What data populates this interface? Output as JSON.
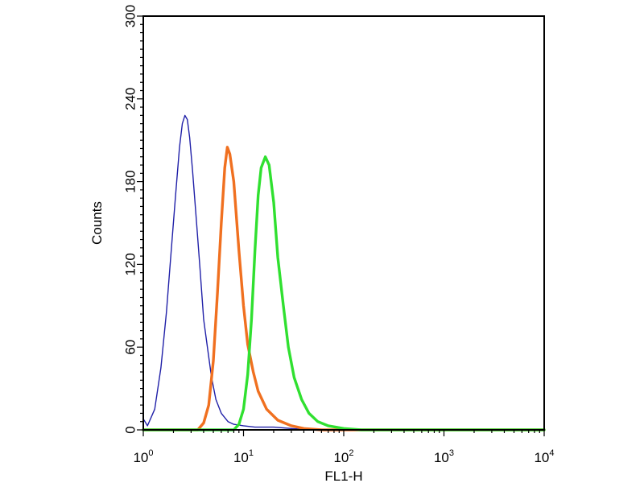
{
  "chart_data": {
    "type": "line",
    "title": "",
    "xlabel": "FL1-H",
    "ylabel": "Counts",
    "x_scale": "log",
    "xlim": [
      1,
      10000
    ],
    "ylim": [
      0,
      300
    ],
    "x_ticks": [
      {
        "base": "10",
        "exp": "0"
      },
      {
        "base": "10",
        "exp": "1"
      },
      {
        "base": "10",
        "exp": "2"
      },
      {
        "base": "10",
        "exp": "3"
      },
      {
        "base": "10",
        "exp": "4"
      }
    ],
    "y_ticks": [
      "0",
      "60",
      "120",
      "180",
      "240",
      "300"
    ],
    "y_tick_values": [
      0,
      60,
      120,
      180,
      240,
      300
    ],
    "grid": false,
    "legend": "none",
    "series": [
      {
        "color": "#2020a8",
        "points": [
          [
            1.0,
            8
          ],
          [
            1.1,
            3
          ],
          [
            1.3,
            15
          ],
          [
            1.5,
            45
          ],
          [
            1.7,
            85
          ],
          [
            1.9,
            130
          ],
          [
            2.1,
            170
          ],
          [
            2.3,
            205
          ],
          [
            2.45,
            222
          ],
          [
            2.6,
            228
          ],
          [
            2.75,
            225
          ],
          [
            2.9,
            212
          ],
          [
            3.1,
            188
          ],
          [
            3.4,
            150
          ],
          [
            3.7,
            115
          ],
          [
            4.0,
            80
          ],
          [
            4.4,
            58
          ],
          [
            4.8,
            38
          ],
          [
            5.3,
            22
          ],
          [
            6.0,
            12
          ],
          [
            7.0,
            6
          ],
          [
            8.0,
            4
          ],
          [
            10,
            3
          ],
          [
            13,
            2
          ],
          [
            20,
            2
          ],
          [
            30,
            1
          ],
          [
            50,
            0
          ],
          [
            10000,
            0
          ]
        ]
      },
      {
        "color": "#f07020",
        "points": [
          [
            1.0,
            0
          ],
          [
            3.5,
            0
          ],
          [
            4.0,
            5
          ],
          [
            4.5,
            18
          ],
          [
            5.0,
            50
          ],
          [
            5.5,
            100
          ],
          [
            6.0,
            150
          ],
          [
            6.5,
            190
          ],
          [
            6.9,
            205
          ],
          [
            7.3,
            200
          ],
          [
            8.0,
            180
          ],
          [
            9.0,
            130
          ],
          [
            10.0,
            90
          ],
          [
            11.0,
            62
          ],
          [
            12.5,
            42
          ],
          [
            14.0,
            28
          ],
          [
            17.0,
            15
          ],
          [
            22.0,
            7
          ],
          [
            30.0,
            3
          ],
          [
            40.0,
            1
          ],
          [
            60.0,
            0
          ],
          [
            10000,
            0
          ]
        ]
      },
      {
        "color": "#30e030",
        "points": [
          [
            1.0,
            0
          ],
          [
            8.0,
            0
          ],
          [
            9.0,
            4
          ],
          [
            10.0,
            15
          ],
          [
            11.0,
            40
          ],
          [
            12.0,
            80
          ],
          [
            13.0,
            130
          ],
          [
            14.0,
            170
          ],
          [
            15.0,
            190
          ],
          [
            16.5,
            198
          ],
          [
            18.0,
            192
          ],
          [
            20.0,
            165
          ],
          [
            22.0,
            125
          ],
          [
            25.0,
            90
          ],
          [
            28.0,
            60
          ],
          [
            32.0,
            38
          ],
          [
            38.0,
            22
          ],
          [
            45.0,
            12
          ],
          [
            55.0,
            6
          ],
          [
            70.0,
            3
          ],
          [
            100.0,
            1
          ],
          [
            150.0,
            0
          ],
          [
            10000,
            0
          ]
        ]
      }
    ]
  }
}
